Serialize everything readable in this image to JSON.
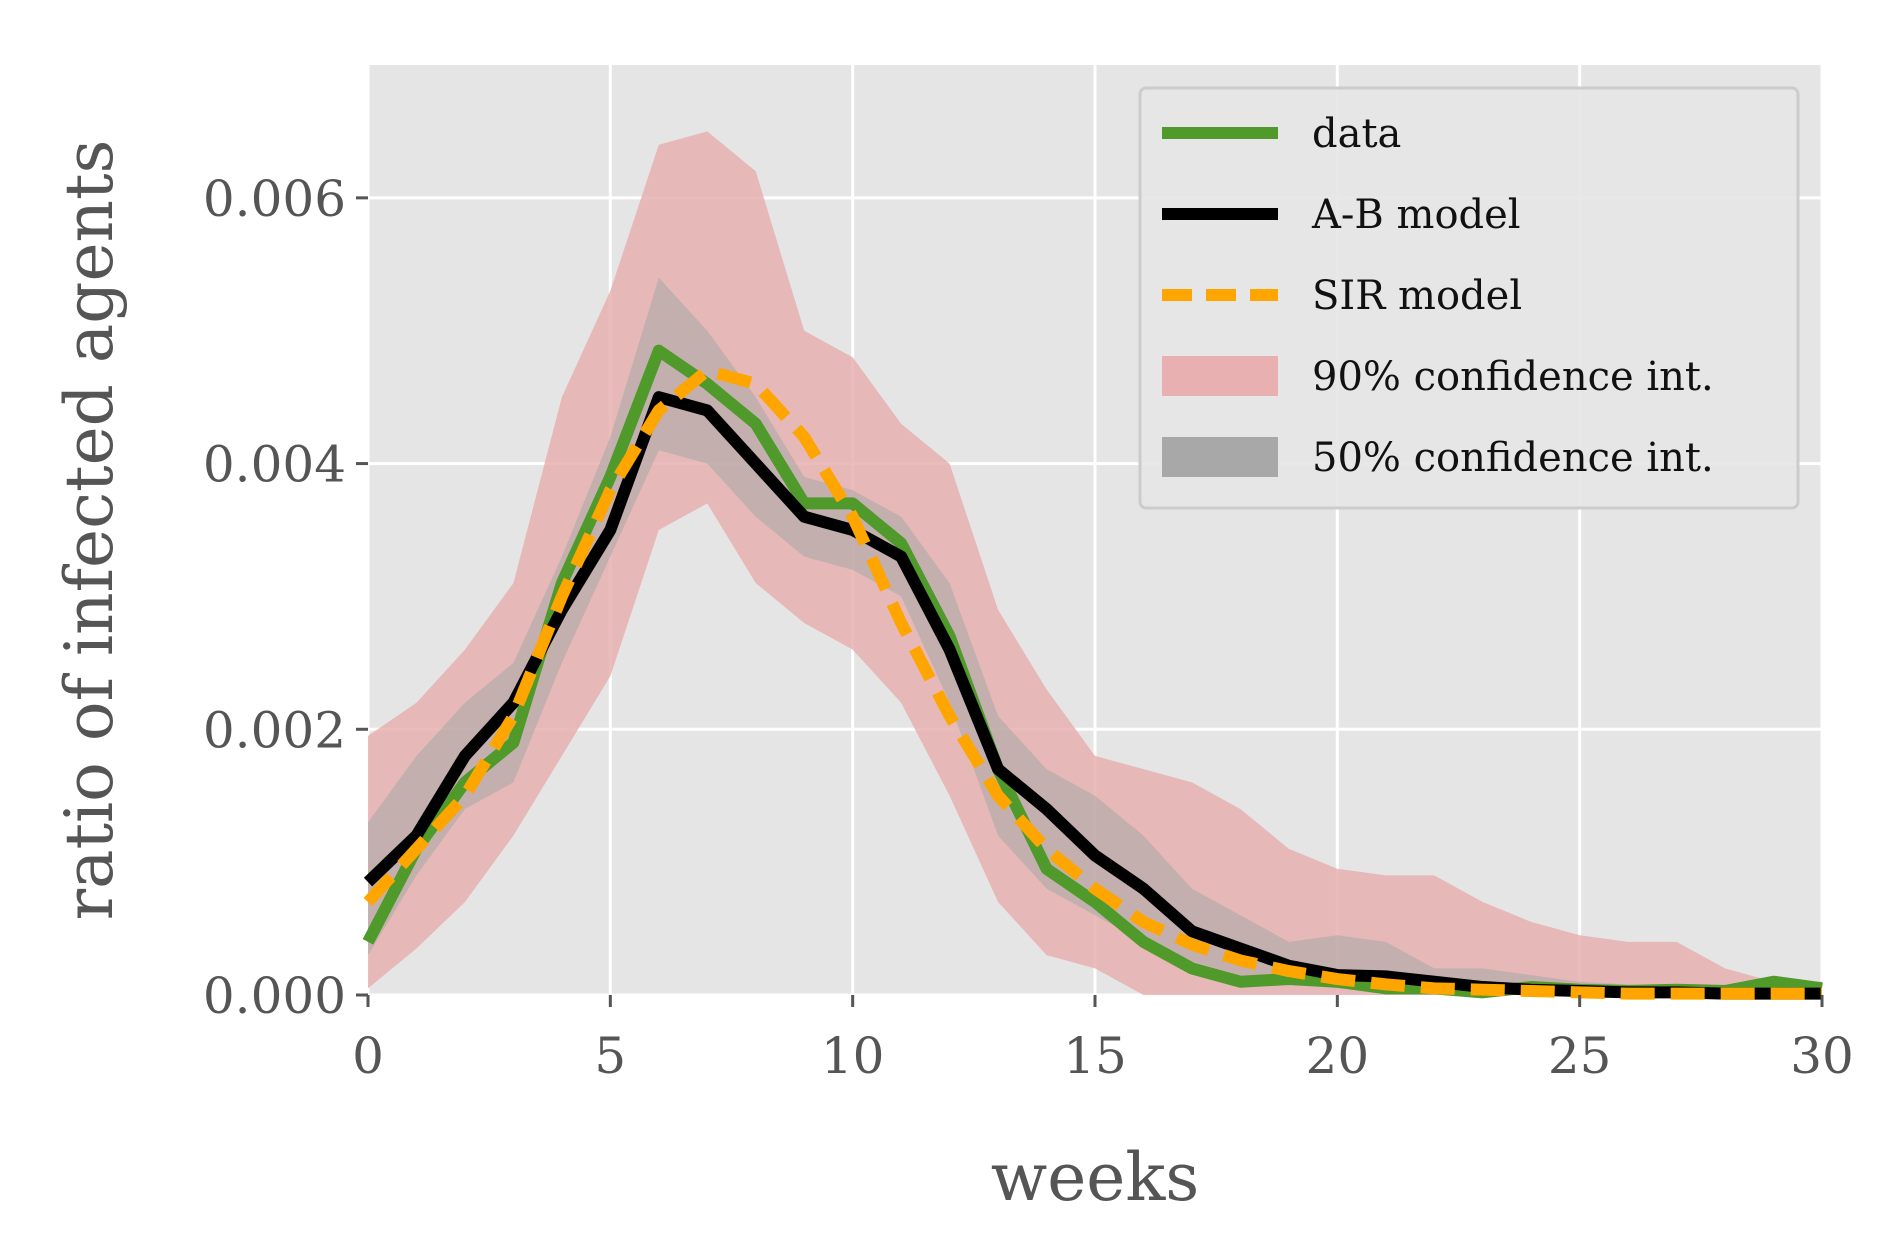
{
  "chart_data": {
    "type": "line",
    "title": "",
    "xlabel": "weeks",
    "ylabel": "ratio of infected agents",
    "xlim": [
      0,
      30
    ],
    "ylim": [
      0,
      0.007
    ],
    "xticks": [
      0,
      5,
      10,
      15,
      20,
      25,
      30
    ],
    "xtick_labels": [
      "0",
      "5",
      "10",
      "15",
      "20",
      "25",
      "30"
    ],
    "yticks": [
      0,
      0.002,
      0.004,
      0.006
    ],
    "ytick_labels": [
      "0.000",
      "0.002",
      "0.004",
      "0.006"
    ],
    "grid": true,
    "legend_position": "top-right",
    "x": [
      0,
      1,
      2,
      3,
      4,
      5,
      6,
      7,
      8,
      9,
      10,
      11,
      12,
      13,
      14,
      15,
      16,
      17,
      18,
      19,
      20,
      21,
      22,
      23,
      24,
      25,
      26,
      27,
      28,
      29,
      30
    ],
    "series": [
      {
        "name": "data",
        "color": "#4f9a2a",
        "dash": "solid",
        "values": [
          0.0004,
          0.0011,
          0.0016,
          0.0019,
          0.0031,
          0.0039,
          0.00485,
          0.0046,
          0.0043,
          0.0037,
          0.0037,
          0.0034,
          0.0027,
          0.0017,
          0.00095,
          0.0007,
          0.0004,
          0.0002,
          0.0001,
          0.00012,
          0.0001,
          5e-05,
          5e-05,
          2e-05,
          6e-05,
          4e-05,
          3e-05,
          4e-05,
          3e-05,
          0.0001,
          5e-05
        ]
      },
      {
        "name": "A-B model",
        "color": "#000000",
        "dash": "solid",
        "values": [
          0.00085,
          0.0012,
          0.0018,
          0.0022,
          0.0029,
          0.0035,
          0.0045,
          0.0044,
          0.004,
          0.0036,
          0.0035,
          0.0033,
          0.0026,
          0.0017,
          0.0014,
          0.00105,
          0.0008,
          0.00048,
          0.00035,
          0.00022,
          0.00015,
          0.00014,
          0.0001,
          6e-05,
          4e-05,
          3e-05,
          2e-05,
          2e-05,
          1e-05,
          1e-05,
          1e-05
        ]
      },
      {
        "name": "SIR model",
        "color": "#ffa500",
        "dash": "dashed",
        "values": [
          0.0007,
          0.0011,
          0.0015,
          0.0021,
          0.003,
          0.0038,
          0.0044,
          0.0047,
          0.0046,
          0.0042,
          0.0036,
          0.0028,
          0.0021,
          0.0015,
          0.0011,
          0.0008,
          0.00055,
          0.00038,
          0.00026,
          0.00018,
          0.00012,
          8e-05,
          5e-05,
          4e-05,
          3e-05,
          2e-05,
          1e-05,
          1e-05,
          1e-05,
          1e-05,
          1e-05
        ]
      }
    ],
    "bands": [
      {
        "name": "90% confidence int.",
        "color": "#e8b0b0",
        "lower": [
          5e-05,
          0.00035,
          0.0007,
          0.0012,
          0.0018,
          0.0024,
          0.0035,
          0.0037,
          0.0031,
          0.0028,
          0.0026,
          0.0022,
          0.0015,
          0.0007,
          0.0003,
          0.0002,
          0.0,
          0.0,
          0.0,
          0.0,
          0.0,
          0.0,
          0.0,
          0.0,
          0.0,
          0.0,
          0.0,
          0.0,
          0.0,
          0.0,
          0.0
        ],
        "upper": [
          0.00195,
          0.0022,
          0.0026,
          0.0031,
          0.0045,
          0.0053,
          0.0064,
          0.0065,
          0.0062,
          0.005,
          0.0048,
          0.0043,
          0.004,
          0.0029,
          0.0023,
          0.0018,
          0.0017,
          0.0016,
          0.0014,
          0.0011,
          0.00095,
          0.0009,
          0.0009,
          0.0007,
          0.00055,
          0.00045,
          0.0004,
          0.0004,
          0.0002,
          0.0001,
          0.0001
        ]
      },
      {
        "name": "50% confidence int.",
        "color": "#a8a8a8",
        "lower": [
          0.0003,
          0.0009,
          0.0014,
          0.0016,
          0.0025,
          0.0033,
          0.0041,
          0.004,
          0.0036,
          0.0033,
          0.0032,
          0.003,
          0.0022,
          0.0012,
          0.0008,
          0.0006,
          0.0004,
          0.00025,
          0.00015,
          0.0001,
          5e-05,
          3e-05,
          2e-05,
          1e-05,
          0.0,
          0.0,
          0.0,
          0.0,
          0.0,
          0.0,
          0.0
        ],
        "upper": [
          0.0013,
          0.0018,
          0.0022,
          0.0025,
          0.0033,
          0.0042,
          0.0054,
          0.005,
          0.0045,
          0.0039,
          0.0038,
          0.0036,
          0.0031,
          0.0021,
          0.0017,
          0.0015,
          0.0012,
          0.0008,
          0.0006,
          0.0004,
          0.00045,
          0.0004,
          0.0002,
          0.0002,
          0.00015,
          0.0001,
          8e-05,
          6e-05,
          5e-05,
          4e-05,
          3e-05
        ]
      }
    ],
    "colors": {
      "plot_background": "#e5e5e5",
      "grid": "#ffffff",
      "text": "#555555",
      "legend_background": "#e5e5e5",
      "legend_border": "#cccccc"
    }
  }
}
